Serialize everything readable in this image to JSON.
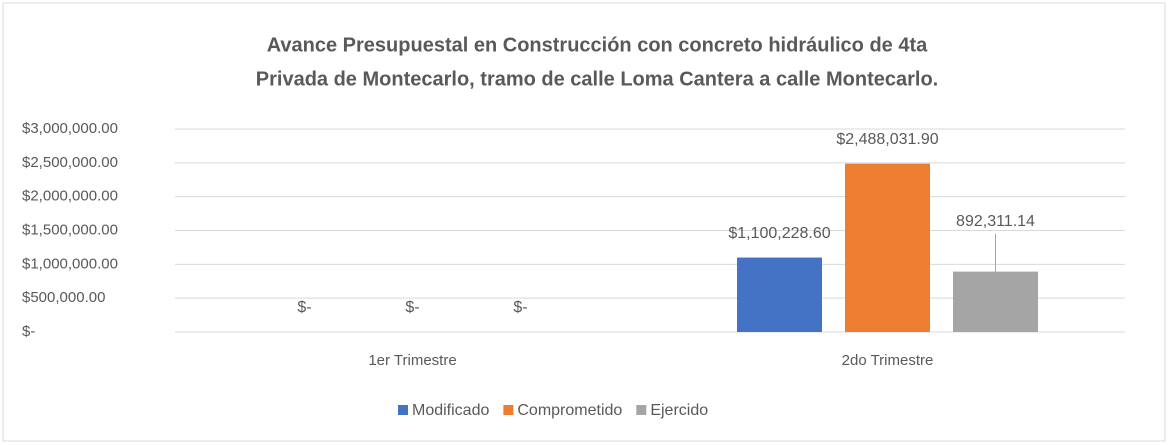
{
  "chart_data": {
    "type": "bar",
    "title": [
      "Avance Presupuestal en Construcción con concreto hidráulico de 4ta",
      "Privada de Montecarlo, tramo de calle Loma Cantera a calle Montecarlo."
    ],
    "categories": [
      "1er Trimestre",
      "2do Trimestre"
    ],
    "series": [
      {
        "name": "Modificado",
        "color": "#4472c4",
        "values": [
          0,
          1100228.6
        ],
        "value_labels": [
          "$-",
          "$1,100,228.60"
        ]
      },
      {
        "name": "Comprometido",
        "color": "#ed7d31",
        "values": [
          0,
          2488031.9
        ],
        "value_labels": [
          "$-",
          "$2,488,031.90"
        ]
      },
      {
        "name": "Ejercido",
        "color": "#a5a5a5",
        "values": [
          0,
          892311.14
        ],
        "value_labels": [
          "$-",
          "892,311.14"
        ]
      }
    ],
    "ylim": [
      0,
      3000000
    ],
    "yticks": [
      {
        "value": 0,
        "label": "$-"
      },
      {
        "value": 500000,
        "label": "$500,000.00"
      },
      {
        "value": 1000000,
        "label": "$1,000,000.00"
      },
      {
        "value": 1500000,
        "label": "$1,500,000.00"
      },
      {
        "value": 2000000,
        "label": "$2,000,000.00"
      },
      {
        "value": 2500000,
        "label": "$2,500,000.00"
      },
      {
        "value": 3000000,
        "label": "$3,000,000.00"
      }
    ],
    "grid": true,
    "legend": "bottom"
  }
}
